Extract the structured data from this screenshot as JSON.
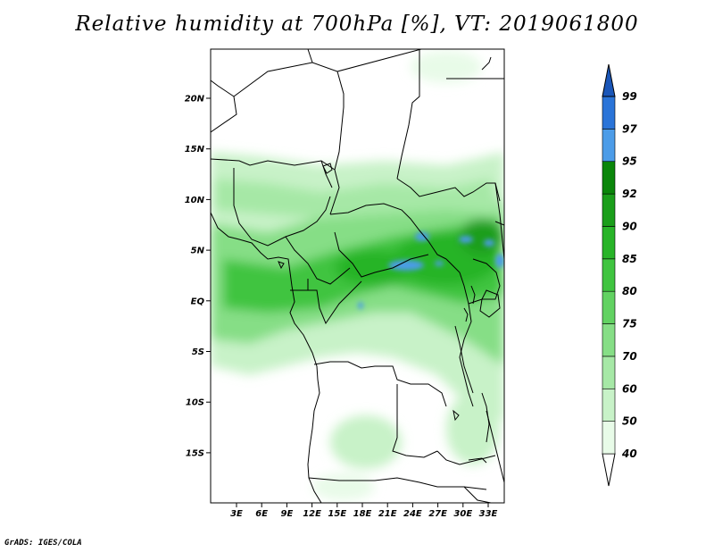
{
  "title": "Relative humidity at 700hPa [%], VT: 2019061800",
  "credit": "GrADS: IGES/COLA",
  "map": {
    "lat_ticks": [
      "20N",
      "15N",
      "10N",
      "5N",
      "EQ",
      "5S",
      "10S",
      "15S"
    ],
    "lon_ticks": [
      "3E",
      "6E",
      "9E",
      "12E",
      "15E",
      "18E",
      "21E",
      "24E",
      "27E",
      "30E",
      "33E"
    ]
  },
  "colorbar": {
    "levels": [
      "40",
      "50",
      "60",
      "70",
      "75",
      "80",
      "85",
      "90",
      "92",
      "95",
      "97",
      "99"
    ],
    "colors": [
      "#ffffff",
      "#e8fbe8",
      "#c8f2c8",
      "#a6e8a6",
      "#86de86",
      "#62d262",
      "#40c440",
      "#28b428",
      "#1a9e1a",
      "#0a860a",
      "#4c9ce8",
      "#2a74d8",
      "#1a56b8"
    ]
  }
}
